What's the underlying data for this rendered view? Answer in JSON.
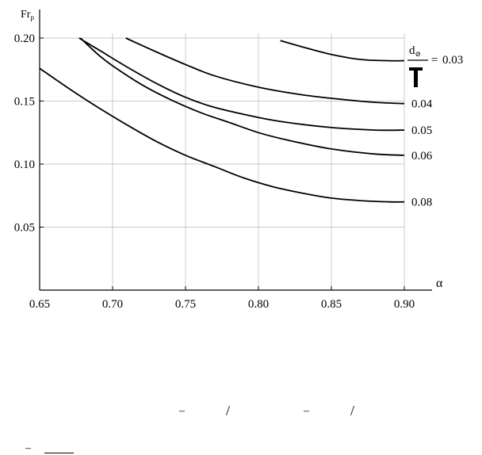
{
  "chart_data": {
    "type": "line",
    "title": "",
    "xlabel": "α",
    "ylabel_main": "Fr",
    "ylabel_sub": "p",
    "xlim": [
      0.65,
      0.9
    ],
    "ylim": [
      0.0,
      0.2
    ],
    "x_ticks": [
      0.65,
      0.7,
      0.75,
      0.8,
      0.85,
      0.9
    ],
    "x_tick_labels": [
      "0.65",
      "0.70",
      "0.75",
      "0.80",
      "0.85",
      "0.90"
    ],
    "y_ticks": [
      0.05,
      0.1,
      0.15,
      0.2
    ],
    "y_tick_labels": [
      "0.05",
      "0.10",
      "0.15",
      "0.20"
    ],
    "grid": true,
    "legend_header": {
      "numerator_main": "d",
      "numerator_sub": "⊘",
      "equals": "="
    },
    "series": [
      {
        "name": "0.03",
        "points": [
          [
            0.815,
            0.198
          ],
          [
            0.83,
            0.193
          ],
          [
            0.85,
            0.187
          ],
          [
            0.87,
            0.183
          ],
          [
            0.89,
            0.182
          ],
          [
            0.9,
            0.182
          ]
        ]
      },
      {
        "name": "0.04",
        "points": [
          [
            0.709,
            0.2
          ],
          [
            0.73,
            0.189
          ],
          [
            0.75,
            0.179
          ],
          [
            0.77,
            0.17
          ],
          [
            0.8,
            0.161
          ],
          [
            0.83,
            0.155
          ],
          [
            0.86,
            0.151
          ],
          [
            0.88,
            0.149
          ],
          [
            0.9,
            0.148
          ]
        ]
      },
      {
        "name": "0.05",
        "points": [
          [
            0.677,
            0.2
          ],
          [
            0.69,
            0.191
          ],
          [
            0.71,
            0.177
          ],
          [
            0.73,
            0.164
          ],
          [
            0.75,
            0.153
          ],
          [
            0.77,
            0.145
          ],
          [
            0.8,
            0.137
          ],
          [
            0.82,
            0.133
          ],
          [
            0.85,
            0.129
          ],
          [
            0.88,
            0.127
          ],
          [
            0.9,
            0.127
          ]
        ]
      },
      {
        "name": "0.06",
        "points": [
          [
            0.678,
            0.2
          ],
          [
            0.69,
            0.187
          ],
          [
            0.7,
            0.178
          ],
          [
            0.72,
            0.163
          ],
          [
            0.74,
            0.151
          ],
          [
            0.76,
            0.141
          ],
          [
            0.78,
            0.133
          ],
          [
            0.8,
            0.125
          ],
          [
            0.82,
            0.119
          ],
          [
            0.85,
            0.112
          ],
          [
            0.88,
            0.108
          ],
          [
            0.9,
            0.107
          ]
        ]
      },
      {
        "name": "0.08",
        "points": [
          [
            0.65,
            0.176
          ],
          [
            0.67,
            0.16
          ],
          [
            0.69,
            0.145
          ],
          [
            0.71,
            0.131
          ],
          [
            0.73,
            0.118
          ],
          [
            0.75,
            0.107
          ],
          [
            0.77,
            0.098
          ],
          [
            0.79,
            0.089
          ],
          [
            0.81,
            0.082
          ],
          [
            0.83,
            0.077
          ],
          [
            0.85,
            0.073
          ],
          [
            0.87,
            0.071
          ],
          [
            0.89,
            0.07
          ],
          [
            0.9,
            0.07
          ]
        ]
      }
    ]
  },
  "artifacts": {
    "fragment_marks": [
      "–",
      "/",
      "–",
      "/",
      "–"
    ],
    "legend_symbol_name": "cross-marker-icon"
  }
}
